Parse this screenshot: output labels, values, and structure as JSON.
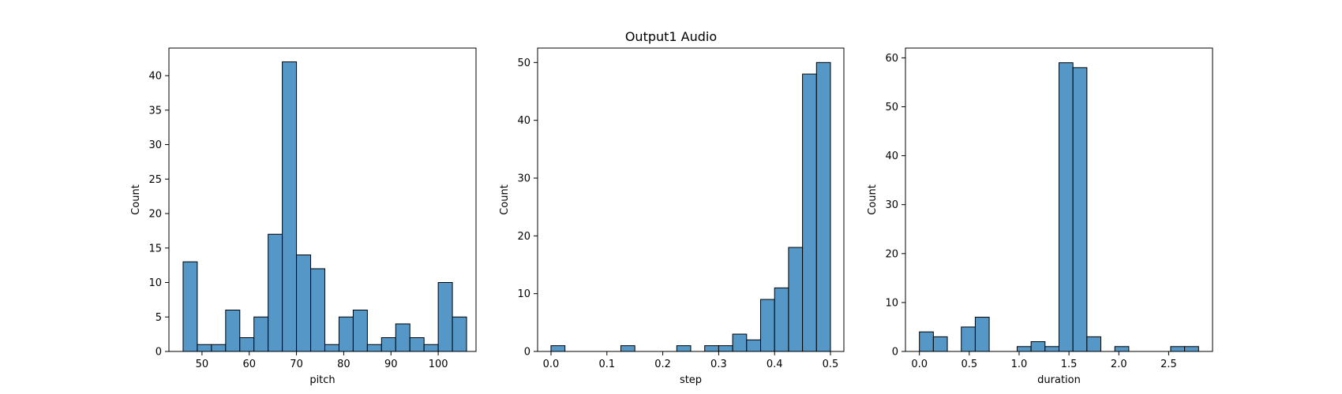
{
  "figure": {
    "title": "Output1 Audio",
    "bar_color": "#5597c6",
    "edge_color": "#000000"
  },
  "chart_data": [
    {
      "type": "bar",
      "xlabel": "pitch",
      "ylabel": "Count",
      "bin_edges": [
        46,
        49,
        52,
        55,
        58,
        61,
        64,
        67,
        70,
        73,
        76,
        79,
        82,
        85,
        88,
        91,
        94,
        97,
        100,
        103,
        106
      ],
      "values": [
        13,
        1,
        1,
        6,
        2,
        5,
        17,
        42,
        14,
        12,
        1,
        5,
        6,
        1,
        2,
        4,
        2,
        1,
        10,
        5
      ],
      "xlim": [
        43,
        108
      ],
      "ylim": [
        0,
        44
      ],
      "xticks": [
        50,
        60,
        70,
        80,
        90,
        100
      ],
      "xtick_labels": [
        "50",
        "60",
        "70",
        "80",
        "90",
        "100"
      ],
      "yticks": [
        0,
        5,
        10,
        15,
        20,
        25,
        30,
        35,
        40
      ],
      "ytick_labels": [
        "0",
        "5",
        "10",
        "15",
        "20",
        "25",
        "30",
        "35",
        "40"
      ]
    },
    {
      "type": "bar",
      "xlabel": "step",
      "ylabel": "Count",
      "bin_edges": [
        0.0,
        0.025,
        0.05,
        0.075,
        0.1,
        0.125,
        0.15,
        0.175,
        0.2,
        0.225,
        0.25,
        0.275,
        0.3,
        0.325,
        0.35,
        0.375,
        0.4,
        0.425,
        0.45,
        0.475,
        0.5
      ],
      "values": [
        1,
        0,
        0,
        0,
        0,
        1,
        0,
        0,
        0,
        1,
        0,
        1,
        1,
        3,
        2,
        9,
        11,
        18,
        48,
        50
      ],
      "xlim": [
        -0.024,
        0.524
      ],
      "ylim": [
        0,
        52.5
      ],
      "xticks": [
        0.0,
        0.1,
        0.2,
        0.3,
        0.4,
        0.5
      ],
      "xtick_labels": [
        "0.0",
        "0.1",
        "0.2",
        "0.3",
        "0.4",
        "0.5"
      ],
      "yticks": [
        0,
        10,
        20,
        30,
        40,
        50
      ],
      "ytick_labels": [
        "0",
        "10",
        "20",
        "30",
        "40",
        "50"
      ]
    },
    {
      "type": "bar",
      "xlabel": "duration",
      "ylabel": "Count",
      "bin_edges": [
        0.0,
        0.14,
        0.28,
        0.42,
        0.56,
        0.7,
        0.84,
        0.98,
        1.12,
        1.26,
        1.4,
        1.54,
        1.68,
        1.82,
        1.96,
        2.1,
        2.24,
        2.38,
        2.52,
        2.66,
        2.8
      ],
      "values": [
        4,
        3,
        0,
        5,
        7,
        0,
        0,
        1,
        2,
        1,
        59,
        58,
        3,
        0,
        1,
        0,
        0,
        0,
        1,
        1
      ],
      "xlim": [
        -0.14,
        2.94
      ],
      "ylim": [
        0,
        62
      ],
      "xticks": [
        0.0,
        0.5,
        1.0,
        1.5,
        2.0,
        2.5
      ],
      "xtick_labels": [
        "0.0",
        "0.5",
        "1.0",
        "1.5",
        "2.0",
        "2.5"
      ],
      "yticks": [
        0,
        10,
        20,
        30,
        40,
        50,
        60
      ],
      "ytick_labels": [
        "0",
        "10",
        "20",
        "30",
        "40",
        "50",
        "60"
      ]
    }
  ]
}
